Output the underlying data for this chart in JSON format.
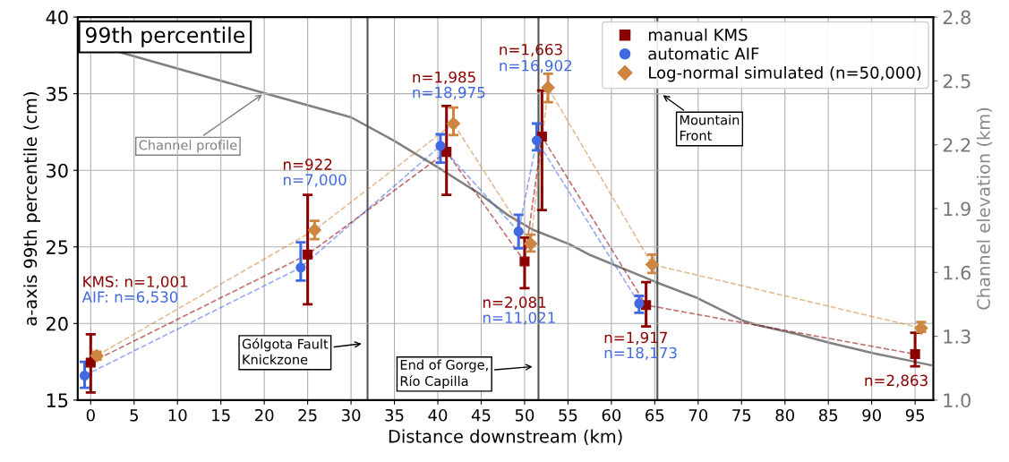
{
  "chart_data": {
    "type": "line",
    "title": "99th percentile",
    "xlabel": "Distance downstream (km)",
    "ylabel": "a-axis 99th percentile (cm)",
    "y2label": "Channel elevation (km)",
    "xlim": [
      -1.5,
      97.1
    ],
    "xticks": [
      0,
      5,
      10,
      15,
      20,
      25,
      30,
      35,
      40,
      45,
      50,
      55,
      60,
      65,
      70,
      75,
      80,
      85,
      90,
      95
    ],
    "ylim": [
      15,
      40
    ],
    "yticks": [
      15,
      20,
      25,
      30,
      35,
      40
    ],
    "y2lim": [
      1.0,
      2.8
    ],
    "y2ticks": [
      {
        "value": 1.0,
        "label": "1.0"
      },
      1.3,
      1.6,
      1.9,
      2.2,
      2.5,
      2.8
    ],
    "grid": true,
    "legend": "top right",
    "line_style": "dashed",
    "series": [
      {
        "name": "manual KMS",
        "color": "#8b0000",
        "marker": "square",
        "x": [
          0,
          25,
          41,
          50,
          52,
          64,
          95
        ],
        "values": [
          17.45,
          24.5,
          31.2,
          24.05,
          32.2,
          21.2,
          18.0
        ],
        "errors": [
          [
            15.5,
            19.3
          ],
          [
            21.25,
            28.4
          ],
          [
            28.4,
            34.2
          ],
          [
            22.3,
            25.6
          ],
          [
            27.4,
            35.2
          ],
          [
            19.8,
            22.7
          ],
          [
            17.2,
            19.4
          ]
        ]
      },
      {
        "name": "automatic AIF",
        "color": "#4169e1",
        "marker": "circle",
        "x": [
          -0.7,
          24.2,
          40.3,
          49.3,
          51.4,
          63.2
        ],
        "values": [
          16.6,
          23.65,
          31.6,
          26.0,
          31.95,
          21.3
        ],
        "errors": [
          [
            15.8,
            17.5
          ],
          [
            22.8,
            25.3
          ],
          [
            30.5,
            32.35
          ],
          [
            24.9,
            27.1
          ],
          [
            31.3,
            33.05
          ],
          [
            20.7,
            21.8
          ]
        ]
      },
      {
        "name": "Log-normal simulated (n=50,000)",
        "color": "#cd853f",
        "marker": "diamond",
        "x": [
          0.7,
          25.8,
          41.8,
          50.7,
          52.7,
          64.7,
          95.7
        ],
        "values": [
          17.9,
          26.1,
          33.05,
          25.2,
          35.4,
          23.85,
          19.7
        ],
        "errors": [
          [
            17.65,
            18.15
          ],
          [
            25.5,
            26.7
          ],
          [
            32.3,
            34.1
          ],
          [
            24.7,
            25.8
          ],
          [
            34.45,
            36.3
          ],
          [
            23.3,
            24.5
          ],
          [
            19.45,
            20.1
          ]
        ]
      },
      {
        "name": "Channel profile",
        "axis": "y2",
        "color": "#808080",
        "line_style": "solid",
        "marker": "none",
        "x": [
          -1.5,
          3.6,
          20,
          30,
          34.9,
          38.3,
          40,
          44.9,
          48,
          51,
          55.2,
          57.6,
          65.1,
          69.9,
          75.1,
          76.8,
          81.3,
          85.1,
          90.3,
          94.4,
          96.8
        ],
        "values": [
          2.71,
          2.632,
          2.443,
          2.329,
          2.22,
          2.136,
          2.094,
          1.967,
          1.871,
          1.8,
          1.732,
          1.681,
          1.555,
          1.48,
          1.374,
          1.353,
          1.311,
          1.27,
          1.219,
          1.185,
          1.164
        ]
      }
    ],
    "ref_lines": [
      {
        "axis": "x",
        "value": 31.9,
        "label": "Gólgota Fault\nKnickzone",
        "color": "#555555"
      },
      {
        "axis": "x",
        "value": 51.6,
        "label": "End of Gorge,\nRío Capilla",
        "color": "#555555"
      },
      {
        "axis": "x",
        "value": 65.3,
        "label": "Mountain\nFront",
        "color": "#555555"
      }
    ],
    "annotations": [
      "KMS: n=1,001",
      "AIF: n=6,530",
      "n=922",
      "n=7,000",
      "n=1,985",
      "n=18,975",
      "n=1,663",
      "n=16,902",
      "n=2,081",
      "n=11,021",
      "n=1,917",
      "n=18,173",
      "n=2,863"
    ]
  }
}
